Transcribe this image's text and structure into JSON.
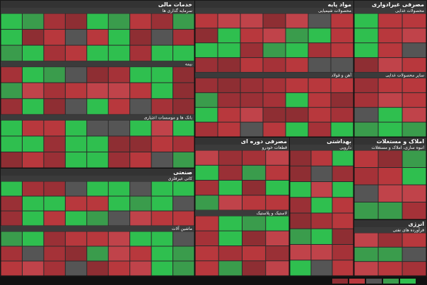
{
  "sectors": [
    {
      "title": "خدمات مالی",
      "groups": [
        "سرمایه گذاری ها",
        "بیمه",
        "بانک ها و موسسات اعتباری"
      ]
    },
    {
      "title": "مواد پایه",
      "groups": [
        "محصولات شیمیایی",
        "آهن و فولاد"
      ]
    },
    {
      "title": "مصرفی غیرادواری",
      "groups": [
        "محصولات غذایی",
        "سایر محصولات غذایی"
      ]
    },
    {
      "title": "صنعتی",
      "groups": [
        "کانی غیرفلزی",
        "ماشین آلات"
      ]
    },
    {
      "title": "مصرفی دوره ای",
      "groups": [
        "قطعات خودرو",
        "لاستیک و پلاستیک"
      ]
    },
    {
      "title": "بهداشتی",
      "groups": [
        "دارویی"
      ]
    },
    {
      "title": "املاک و مستغلات",
      "groups": [
        "انبوه سازی، املاک و مستغلات"
      ]
    },
    {
      "title": "انرژی",
      "groups": [
        "فرآورده های نفتی"
      ]
    }
  ]
}
